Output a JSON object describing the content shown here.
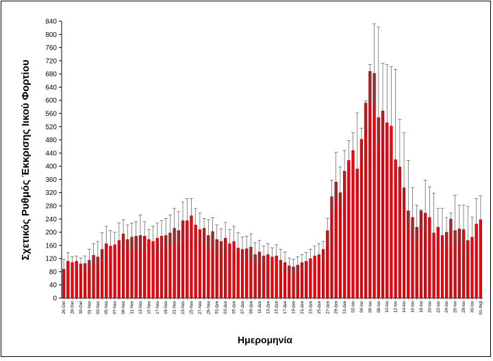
{
  "chart_data": {
    "type": "bar",
    "xlabel": "Ημερομηνία",
    "ylabel": "Σχετικός Ρυθμός Έκκρισης Ιικού Φορτίου",
    "ylim": [
      0,
      840
    ],
    "yticks": [
      0,
      40,
      80,
      120,
      160,
      200,
      240,
      280,
      320,
      360,
      400,
      440,
      480,
      520,
      560,
      600,
      640,
      680,
      720,
      760,
      800,
      840
    ],
    "grid": false,
    "error_bars": true,
    "colors": {
      "bar": "#e8000d",
      "bar_edge": "#8b0000",
      "error_bar": "#555555"
    },
    "categories": [
      "26-Οκτ",
      "",
      "28-Οκτ",
      "",
      "30-Οκτ",
      "",
      "01-Νοε",
      "",
      "03-Νοε",
      "",
      "05-Νοε",
      "",
      "07-Νοε",
      "",
      "09-Νοε",
      "",
      "11-Νοε",
      "",
      "13-Νοε",
      "",
      "15-Νοε",
      "",
      "17-Νοε",
      "",
      "19-Νοε",
      "",
      "21-Νοε",
      "",
      "23-Νοε",
      "",
      "25-Νοε",
      "",
      "27-Νοε",
      "",
      "29-Νοε",
      "",
      "01-Δεκ",
      "",
      "03-Δεκ",
      "",
      "05-Δεκ",
      "",
      "07-Δεκ",
      "",
      "09-Δεκ",
      "",
      "11-Δεκ",
      "",
      "13-Δεκ",
      "",
      "15-Δεκ",
      "",
      "17-Δεκ",
      "",
      "19-Δεκ",
      "",
      "21-Δεκ",
      "",
      "23-Δεκ",
      "",
      "25-Δεκ",
      "",
      "27-Δεκ",
      "",
      "29-Δεκ",
      "",
      "31-Δεκ",
      "",
      "02-Ιαν",
      "",
      "04-Ιαν",
      "",
      "06-Ιαν",
      "",
      "08-Ιαν",
      "",
      "10-Ιαν",
      "",
      "12-Ιαν",
      "",
      "14-Ιαν",
      "",
      "16-Ιαν",
      "",
      "18-Ιαν",
      "",
      "20-Ιαν",
      "",
      "22-Ιαν",
      "",
      "24-Ιαν",
      "",
      "26-Ιαν",
      "",
      "28-Ιαν",
      "",
      "30-Ιαν",
      "",
      "01-Φεβ"
    ],
    "values": [
      88,
      112,
      108,
      112,
      104,
      105,
      115,
      130,
      125,
      148,
      165,
      158,
      162,
      175,
      195,
      178,
      185,
      188,
      190,
      188,
      178,
      172,
      182,
      188,
      190,
      198,
      212,
      205,
      235,
      235,
      250,
      222,
      208,
      212,
      190,
      202,
      178,
      172,
      182,
      165,
      172,
      152,
      148,
      150,
      155,
      132,
      140,
      128,
      132,
      125,
      128,
      115,
      108,
      98,
      95,
      100,
      108,
      112,
      120,
      128,
      132,
      148,
      205,
      308,
      352,
      320,
      385,
      418,
      448,
      392,
      482,
      592,
      688,
      682,
      548,
      568,
      532,
      522,
      420,
      398,
      335,
      265,
      245,
      215,
      265,
      258,
      245,
      198,
      215,
      190,
      200,
      240,
      205,
      210,
      208,
      175,
      185,
      225,
      238
    ],
    "error_upper": [
      118,
      138,
      125,
      128,
      122,
      128,
      148,
      165,
      172,
      198,
      218,
      205,
      200,
      228,
      238,
      222,
      228,
      232,
      252,
      232,
      208,
      218,
      228,
      235,
      242,
      252,
      272,
      262,
      292,
      302,
      302,
      272,
      258,
      242,
      238,
      244,
      222,
      210,
      230,
      208,
      218,
      198,
      185,
      188,
      195,
      168,
      175,
      158,
      165,
      152,
      162,
      148,
      140,
      122,
      118,
      125,
      132,
      138,
      148,
      158,
      165,
      172,
      242,
      358,
      442,
      398,
      448,
      478,
      502,
      562,
      515,
      598,
      708,
      832,
      822,
      712,
      708,
      702,
      694,
      542,
      502,
      418,
      335,
      282,
      268,
      358,
      338,
      318,
      272,
      272,
      245,
      258,
      312,
      282,
      282,
      278,
      245,
      302,
      310
    ],
    "error_lower": [
      62,
      88,
      90,
      95,
      88,
      85,
      92,
      108,
      92,
      115,
      128,
      125,
      128,
      135,
      155,
      148,
      158,
      150,
      150,
      148,
      145,
      140,
      148,
      152,
      155,
      162,
      172,
      168,
      182,
      188,
      200,
      178,
      168,
      165,
      150,
      162,
      140,
      138,
      148,
      130,
      138,
      118,
      112,
      118,
      122,
      105,
      108,
      100,
      105,
      98,
      100,
      90,
      85,
      78,
      75,
      80,
      85,
      88,
      95,
      102,
      105,
      115,
      165,
      262,
      302,
      272,
      328,
      362,
      388,
      338,
      418,
      512,
      598,
      582,
      468,
      488,
      452,
      442,
      350,
      325,
      278,
      218,
      198,
      175,
      218,
      210,
      200,
      160,
      172,
      150,
      162,
      195,
      165,
      170,
      168,
      138,
      148,
      182,
      192
    ]
  }
}
